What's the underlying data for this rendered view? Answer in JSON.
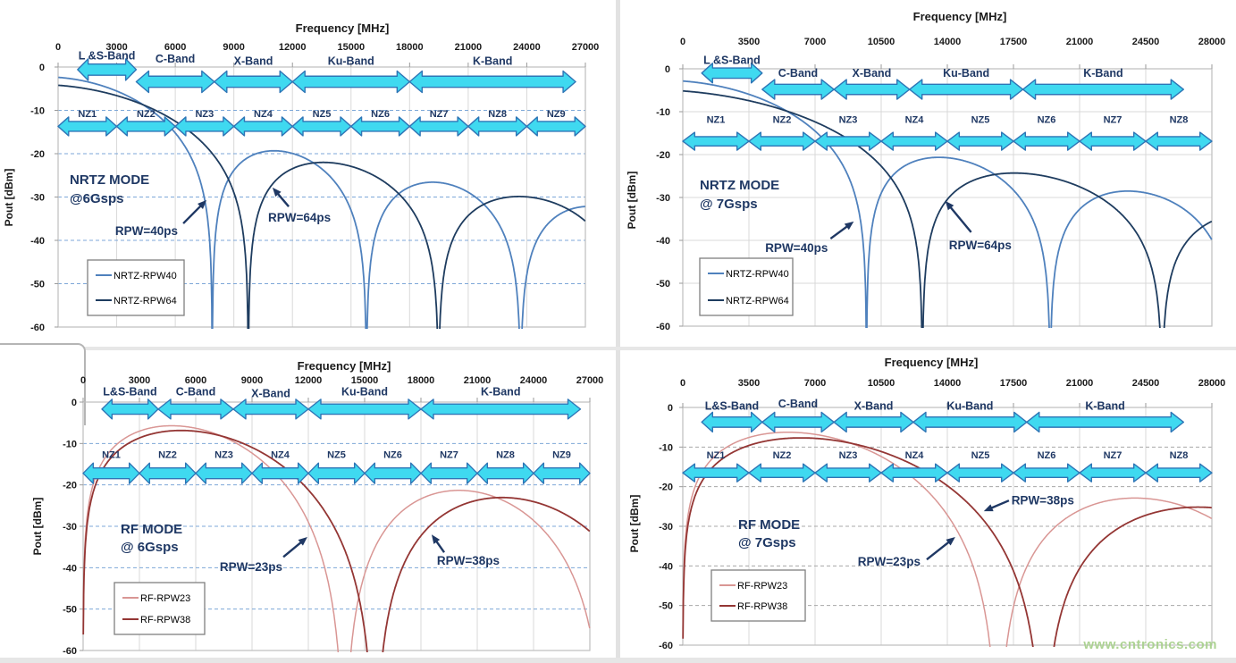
{
  "page": {
    "watermark": "www.cntronics.com",
    "watermark_color": "#a9d18e"
  },
  "colors": {
    "band_arrow_fill": "#3fd9f0",
    "band_arrow_stroke": "#2e75b6",
    "navy_text": "#1f3864",
    "grid_gray": "#d9d9d9",
    "grid_blue_dashed": "#7da7d8",
    "axis_text": "#1a1a1a",
    "legend_border": "#7f7f7f"
  },
  "chart_data": [
    {
      "id": "nrtz6",
      "type": "line",
      "axis_title": "Frequency [MHz]",
      "y_axis_title": "Pout [dBm]",
      "mode_lines": [
        "NRTZ MODE",
        "@6Gsps"
      ],
      "pulse_mode": "nrtz",
      "sample_rate_gsps": 6.0,
      "extra_rolloff_db_per_ghz": 0.33,
      "x_max_mhz": 27000,
      "x_ticks": [
        0,
        3000,
        6000,
        9000,
        12000,
        15000,
        18000,
        21000,
        24000,
        27000
      ],
      "y_ticks": [
        0,
        -10,
        -20,
        -30,
        -40,
        -50,
        -60
      ],
      "ylim": [
        -60,
        0
      ],
      "series": [
        {
          "label": "NRTZ-RPW40",
          "rpw_ps": 40,
          "color": "#4f81bd",
          "width": 1.8
        },
        {
          "label": "NRTZ-RPW64",
          "rpw_ps": 64,
          "color": "#1e3c5f",
          "width": 1.8
        }
      ],
      "bands": [
        {
          "label": "L &S-Band",
          "f1_mhz": 1000,
          "f2_mhz": 4000,
          "arrow_dbm": -0.6,
          "label_dbm": 2.6
        },
        {
          "label": "C-Band",
          "f1_mhz": 4000,
          "f2_mhz": 8000,
          "arrow_dbm": -3.4,
          "label_dbm": 1.9
        },
        {
          "label": "X-Band",
          "f1_mhz": 8000,
          "f2_mhz": 12000,
          "arrow_dbm": -3.4,
          "label_dbm": 1.3
        },
        {
          "label": "Ku-Band",
          "f1_mhz": 12000,
          "f2_mhz": 18000,
          "arrow_dbm": -3.4,
          "label_dbm": 1.3
        },
        {
          "label": "K-Band",
          "f1_mhz": 18000,
          "f2_mhz": 26500,
          "arrow_dbm": -3.4,
          "label_dbm": 1.3
        }
      ],
      "nyquist_zones": {
        "labels": [
          "NZ1",
          "NZ2",
          "NZ3",
          "NZ4",
          "NZ5",
          "NZ6",
          "NZ7",
          "NZ8",
          "NZ9"
        ],
        "zone_mhz": 3000,
        "arrow_dbm": -13.7,
        "label_dbm": -10.7
      },
      "annotations": [
        {
          "text": "RPW=40ps",
          "text_mhz": 4530,
          "text_dbm": -37.7,
          "tail_mhz": 6410,
          "tail_dbm": -36.1,
          "head_mhz": 7600,
          "head_dbm": -30.7
        },
        {
          "text": "RPW=64ps",
          "text_mhz": 12360,
          "text_dbm": -34.6,
          "tail_mhz": 11810,
          "tail_dbm": -32.2,
          "head_mhz": 10980,
          "head_dbm": -27.8
        }
      ],
      "legend_labels": [
        "NRTZ-RPW40",
        "NRTZ-RPW64"
      ]
    },
    {
      "id": "nrtz7",
      "type": "line",
      "axis_title": "Frequency [MHz]",
      "y_axis_title": "Pout [dBm]",
      "mode_lines": [
        "NRTZ MODE",
        "@ 7Gsps"
      ],
      "pulse_mode": "nrtz",
      "sample_rate_gsps": 7.0,
      "extra_rolloff_db_per_ghz": 0.33,
      "x_max_mhz": 28000,
      "x_ticks": [
        0,
        3500,
        7000,
        10500,
        14000,
        17500,
        21000,
        24500,
        28000
      ],
      "y_ticks": [
        0,
        -10,
        -20,
        -30,
        -40,
        -50,
        -60
      ],
      "ylim": [
        -60,
        0
      ],
      "series": [
        {
          "label": "NRTZ-RPW40",
          "rpw_ps": 40,
          "color": "#4f81bd",
          "width": 1.8
        },
        {
          "label": "NRTZ-RPW64",
          "rpw_ps": 64,
          "color": "#1e3c5f",
          "width": 1.8
        }
      ],
      "bands": [
        {
          "label": "L &S-Band",
          "f1_mhz": 1000,
          "f2_mhz": 4200,
          "arrow_dbm": -1.0,
          "label_dbm": 2.0
        },
        {
          "label": "C-Band",
          "f1_mhz": 4200,
          "f2_mhz": 8000,
          "arrow_dbm": -4.8,
          "label_dbm": -1.0
        },
        {
          "label": "X-Band",
          "f1_mhz": 8000,
          "f2_mhz": 12000,
          "arrow_dbm": -4.8,
          "label_dbm": -1.0
        },
        {
          "label": "Ku-Band",
          "f1_mhz": 12000,
          "f2_mhz": 18000,
          "arrow_dbm": -4.8,
          "label_dbm": -1.0
        },
        {
          "label": "K-Band",
          "f1_mhz": 18000,
          "f2_mhz": 26500,
          "arrow_dbm": -4.8,
          "label_dbm": -1.0
        }
      ],
      "nyquist_zones": {
        "labels": [
          "NZ1",
          "NZ2",
          "NZ3",
          "NZ4",
          "NZ5",
          "NZ6",
          "NZ7",
          "NZ8"
        ],
        "zone_mhz": 3500,
        "arrow_dbm": -16.9,
        "label_dbm": -11.8
      },
      "annotations": [
        {
          "text": "RPW=40ps",
          "text_mhz": 6020,
          "text_dbm": -41.7,
          "tail_mhz": 7820,
          "tail_dbm": -39.6,
          "head_mhz": 9050,
          "head_dbm": -35.6
        },
        {
          "text": "RPW=64ps",
          "text_mhz": 15740,
          "text_dbm": -41.0,
          "tail_mhz": 15260,
          "tail_dbm": -38.1,
          "head_mhz": 13890,
          "head_dbm": -30.8
        }
      ],
      "legend_labels": [
        "NRTZ-RPW40",
        "NRTZ-RPW64"
      ]
    },
    {
      "id": "rf6",
      "type": "line",
      "axis_title": "Frequency [MHz]",
      "y_axis_title": "Pout [dBm]",
      "mode_lines": [
        "RF MODE",
        "@ 6Gsps"
      ],
      "pulse_mode": "rf",
      "sample_rate_gsps": 6.0,
      "extra_rolloff_db_per_ghz": 0.33,
      "x_max_mhz": 27000,
      "x_ticks": [
        0,
        3000,
        6000,
        9000,
        12000,
        15000,
        18000,
        21000,
        24000,
        27000
      ],
      "y_ticks": [
        0,
        -10,
        -20,
        -30,
        -40,
        -50,
        -60
      ],
      "ylim": [
        -60,
        0
      ],
      "series": [
        {
          "label": "RF-RPW23",
          "rpw_ps": 23,
          "color": "#d99694",
          "width": 1.5
        },
        {
          "label": "RF-RPW38",
          "rpw_ps": 38,
          "color": "#943634",
          "width": 1.8
        }
      ],
      "bands": [
        {
          "label": "L&S-Band",
          "f1_mhz": 1000,
          "f2_mhz": 4000,
          "arrow_dbm": -1.7,
          "label_dbm": 2.5
        },
        {
          "label": "C-Band",
          "f1_mhz": 4000,
          "f2_mhz": 8000,
          "arrow_dbm": -1.7,
          "label_dbm": 2.5
        },
        {
          "label": "X-Band",
          "f1_mhz": 8000,
          "f2_mhz": 12000,
          "arrow_dbm": -1.7,
          "label_dbm": 2.0
        },
        {
          "label": "Ku-Band",
          "f1_mhz": 12000,
          "f2_mhz": 18000,
          "arrow_dbm": -1.7,
          "label_dbm": 2.5
        },
        {
          "label": "K-Band",
          "f1_mhz": 18000,
          "f2_mhz": 26500,
          "arrow_dbm": -1.7,
          "label_dbm": 2.5
        }
      ],
      "nyquist_zones": {
        "labels": [
          "NZ1",
          "NZ2",
          "NZ3",
          "NZ4",
          "NZ5",
          "NZ6",
          "NZ7",
          "NZ8",
          "NZ9"
        ],
        "zone_mhz": 3000,
        "arrow_dbm": -17.2,
        "label_dbm": -12.6
      },
      "annotations": [
        {
          "text": "RPW=23ps",
          "text_mhz": 8950,
          "text_dbm": -39.7,
          "tail_mhz": 10670,
          "tail_dbm": -37.4,
          "head_mhz": 11950,
          "head_dbm": -32.6
        },
        {
          "text": "RPW=38ps",
          "text_mhz": 20520,
          "text_dbm": -38.2,
          "tail_mhz": 19240,
          "tail_dbm": -36.3,
          "head_mhz": 18570,
          "head_dbm": -32.0
        }
      ],
      "legend_labels": [
        "RF-RPW23",
        "RF-RPW38"
      ]
    },
    {
      "id": "rf7",
      "type": "line",
      "axis_title": "Frequency [MHz]",
      "y_axis_title": "Pout [dBm]",
      "mode_lines": [
        "RF MODE",
        "@ 7Gsps"
      ],
      "pulse_mode": "rf",
      "sample_rate_gsps": 7.0,
      "extra_rolloff_db_per_ghz": 0.33,
      "x_max_mhz": 28000,
      "x_ticks": [
        0,
        3500,
        7000,
        10500,
        14000,
        17500,
        21000,
        24500,
        28000
      ],
      "y_ticks": [
        0,
        -10,
        -20,
        -30,
        -40,
        -50,
        -60
      ],
      "ylim": [
        -60,
        0
      ],
      "series": [
        {
          "label": "RF-RPW23",
          "rpw_ps": 23,
          "color": "#d99694",
          "width": 1.5
        },
        {
          "label": "RF-RPW38",
          "rpw_ps": 38,
          "color": "#943634",
          "width": 1.8
        }
      ],
      "bands": [
        {
          "label": "L&S-Band",
          "f1_mhz": 1000,
          "f2_mhz": 4200,
          "arrow_dbm": -3.7,
          "label_dbm": 0.3
        },
        {
          "label": "C-Band",
          "f1_mhz": 4200,
          "f2_mhz": 8000,
          "arrow_dbm": -3.7,
          "label_dbm": 0.9
        },
        {
          "label": "X-Band",
          "f1_mhz": 8000,
          "f2_mhz": 12200,
          "arrow_dbm": -3.7,
          "label_dbm": 0.3
        },
        {
          "label": "Ku-Band",
          "f1_mhz": 12200,
          "f2_mhz": 18200,
          "arrow_dbm": -3.7,
          "label_dbm": 0.3
        },
        {
          "label": "K-Band",
          "f1_mhz": 18200,
          "f2_mhz": 26500,
          "arrow_dbm": -3.7,
          "label_dbm": 0.3
        }
      ],
      "nyquist_zones": {
        "labels": [
          "NZ1",
          "NZ2",
          "NZ3",
          "NZ4",
          "NZ5",
          "NZ6",
          "NZ7",
          "NZ8"
        ],
        "zone_mhz": 3500,
        "arrow_dbm": -16.5,
        "label_dbm": -11.9
      },
      "annotations": [
        {
          "text": "RPW=23ps",
          "text_mhz": 10920,
          "text_dbm": -38.8,
          "tail_mhz": 12910,
          "tail_dbm": -38.4,
          "head_mhz": 14420,
          "head_dbm": -32.7
        },
        {
          "text": "RPW=38ps",
          "text_mhz": 19050,
          "text_dbm": -23.3,
          "tail_mhz": 17260,
          "tail_dbm": -23.5,
          "head_mhz": 15930,
          "head_dbm": -26.2
        }
      ],
      "legend_labels": [
        "RF-RPW23",
        "RF-RPW38"
      ]
    }
  ]
}
